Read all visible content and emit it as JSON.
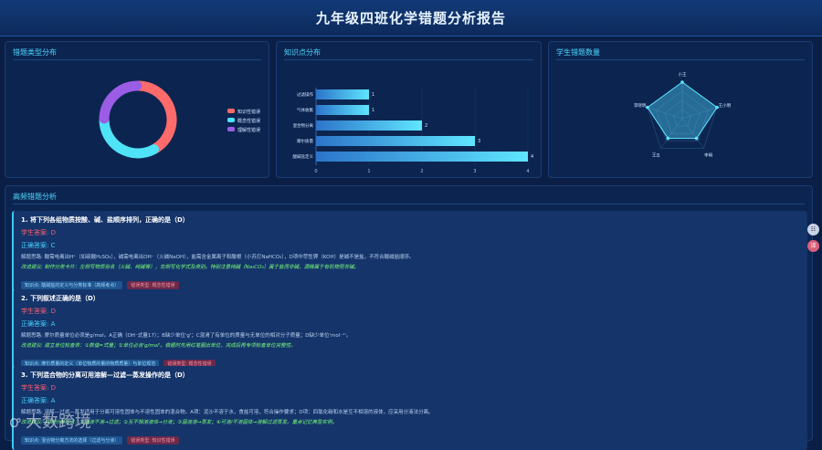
{
  "header": {
    "title": "九年级四班化学错题分析报告"
  },
  "colors": {
    "accent": "#4fd8ff",
    "student_answer": "#ff5f6d",
    "suggestion": "#7cff7a"
  },
  "panels": {
    "types": "错题类型分布",
    "knowledge": "知识点分布",
    "students": "学生错题数量",
    "frequent": "高频错题分析"
  },
  "chart_data": [
    {
      "type": "pie",
      "variant": "donut",
      "categories": [
        "知识性错误",
        "概念性错误",
        "理解性错误"
      ],
      "values": [
        5,
        4,
        3
      ],
      "colors": [
        "#ff6b6b",
        "#4fe3f7",
        "#9b5de5"
      ],
      "legend": "right"
    },
    {
      "type": "bar",
      "orientation": "horizontal",
      "categories": [
        "过滤操作",
        "气体收集",
        "混合物分离",
        "摩尔质量",
        "酸碱盐定义"
      ],
      "values": [
        1,
        1,
        2,
        3,
        4
      ],
      "xlim": [
        0,
        4
      ],
      "xticks": [
        "0",
        "1",
        "2",
        "3",
        "4"
      ],
      "grid": true
    },
    {
      "type": "radar",
      "categories": [
        "小王",
        "王小明",
        "李明",
        "王五",
        "李晓明"
      ],
      "values": [
        3,
        3,
        2,
        2,
        3
      ],
      "max": 3
    }
  ],
  "questions": [
    {
      "title": "1. 将下列各组物质按酸、碱、盐顺序排列，正确的是（D）",
      "student": "学生答案: D",
      "correct": "正确答案: C",
      "explain": "解题思路: 酸需电离出H⁺（如硫酸H₂SO₄），碱需电离出OH⁻（火碱NaOH），盐需含金属离子和酸根（小苏打NaHCO₃），D项中苛性钾（KOH）是碱不是盐，不符合酸碱盐顺序。",
      "suggest": "改进建议: 制作分类卡片：左侧写物质俗名（火碱、纯碱等），右侧写化学式及类别。特别注意纯碱（Na₂CO₃）属于盐而非碱，酒精属于有机物而非碱。",
      "tags": [
        "知识点: 酸碱盐的定义与分类标准（高频考点）",
        "错误类型: 概念性错误"
      ]
    },
    {
      "title": "2. 下列叙述正确的是（D）",
      "student": "学生答案: D",
      "correct": "正确答案: A",
      "explain": "解题思路: 摩尔质量单位必须是g/mol。A正确（OH⁻式量17）；B缺少单位'g'；C混淆了有单位的质量与无单位的相对分子质量；D缺少单位'mol⁻¹'。",
      "suggest": "改进建议: 建立单位检查表：①数值=式量；②单位必含'g/mol'。做题时先用红笔圈出单位，完成后再专项检查单位完整性。",
      "tags": [
        "知识点: 摩尔质量的定义（单位物质的量的物质质量）与单位规范",
        "错误类型: 概念性错误"
      ]
    },
    {
      "title": "3. 下列混合物的分离可用溶解—过滤—蒸发操作的是（D）",
      "student": "学生答案: D",
      "correct": "正确答案: A",
      "explain": "解题思路: 溶解—过滤—蒸发适用于分离可溶性固体与不溶性固体的混合物。A项：泥沙不溶于水，食盐可溶，符合操作要求；D项：四氯化碳和水是互不相溶的液体，应采用分液法分离。",
      "suggest": "改进建议: 总结分离方法：①固液不溶→过滤；②互不相溶液体→分液；③固液溶→蒸发；④可溶/不溶固体→溶解过滤蒸发。重点记忆典型实例。",
      "tags": [
        "知识点: 混合物分离方法的选择（过滤与分液）",
        "错误类型: 知识性错误"
      ]
    }
  ],
  "fabs": [
    "☷",
    "译"
  ],
  "watermark": "大数跨境"
}
